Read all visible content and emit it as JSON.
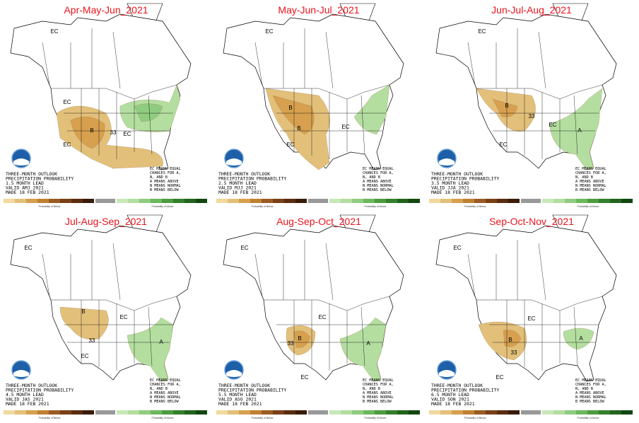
{
  "scale_captions": [
    "Probability of Below",
    "Probability of Above"
  ],
  "key": [
    "EC MEANS EQUAL",
    "CHANCES FOR A,",
    "N, AND B",
    "A MEANS ABOVE",
    "N MEANS NORMAL",
    "B MEANS BELOW"
  ],
  "panels": [
    {
      "title": "Apr-May-Jun_2021",
      "outlook": [
        "THREE-MONTH OUTLOOK",
        "PRECIPITATION PROBABILITY",
        "1.5 MONTH LEAD",
        "VALID AMJ 2021",
        "MADE 18 FEB 2021"
      ],
      "labels": [
        "EC",
        "EC",
        "B",
        "33",
        "EC",
        "EC"
      ]
    },
    {
      "title": "May-Jun-Jul_2021",
      "outlook": [
        "THREE-MONTH OUTLOOK",
        "PRECIPITATION PROBABILITY",
        "2.5 MONTH LEAD",
        "VALID MJJ 2021",
        "MADE 18 FEB 2021"
      ],
      "labels": [
        "EC",
        "B",
        "B",
        "EC",
        "EC"
      ]
    },
    {
      "title": "Jun-Jul-Aug_2021",
      "outlook": [
        "THREE-MONTH OUTLOOK",
        "PRECIPITATION PROBABILITY",
        "3.5 MONTH LEAD",
        "VALID JJA 2021",
        "MADE 18 FEB 2021"
      ],
      "labels": [
        "EC",
        "B",
        "33",
        "EC",
        "EC",
        "A"
      ]
    },
    {
      "title": "Jul-Aug-Sep_2021",
      "outlook": [
        "THREE-MONTH OUTLOOK",
        "PRECIPITATION PROBABILITY",
        "4.5 MONTH LEAD",
        "VALID JAS 2021",
        "MADE 18 FEB 2021"
      ],
      "labels": [
        "EC",
        "B",
        "33",
        "EC",
        "EC",
        "A"
      ]
    },
    {
      "title": "Aug-Sep-Oct_2021",
      "outlook": [
        "THREE-MONTH OUTLOOK",
        "PRECIPITATION PROBABILITY",
        "5.5 MONTH LEAD",
        "VALID ASO 2021",
        "MADE 18 FEB 2021"
      ],
      "labels": [
        "EC",
        "B",
        "33",
        "EC",
        "EC",
        "A"
      ]
    },
    {
      "title": "Sep-Oct-Nov_2021",
      "outlook": [
        "THREE-MONTH OUTLOOK",
        "PRECIPITATION PROBABILITY",
        "6.5 MONTH LEAD",
        "VALID SON 2021",
        "MADE 18 FEB 2021"
      ],
      "labels": [
        "EC",
        "B",
        "33",
        "EC",
        "EC",
        "A"
      ]
    }
  ]
}
